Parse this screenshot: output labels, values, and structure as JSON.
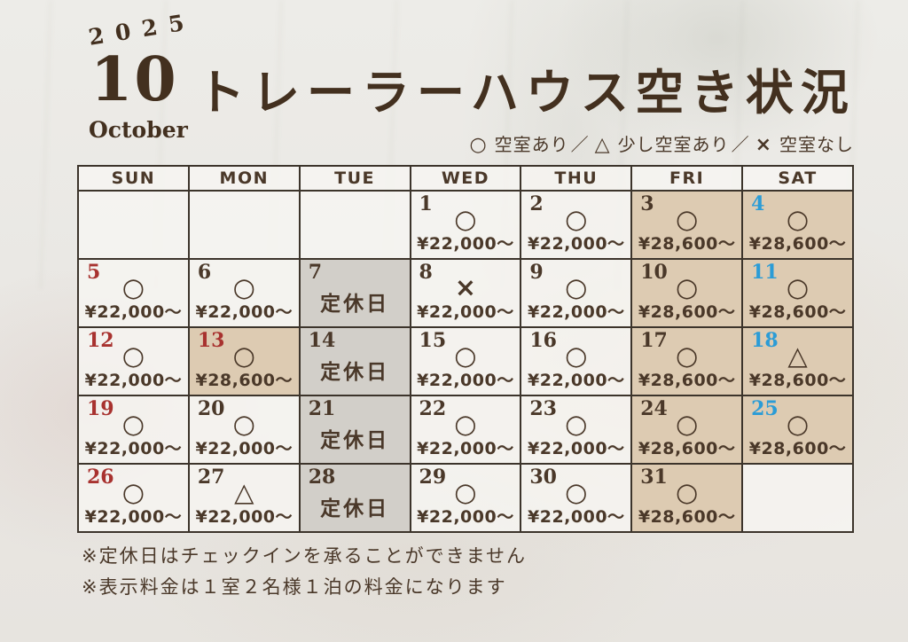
{
  "header": {
    "year": "2025",
    "month_number": "10",
    "month_name": "October",
    "title": "トレーラーハウス空き状況"
  },
  "legend": {
    "separator": "／",
    "items": [
      {
        "symbol": "○",
        "label": "空室あり"
      },
      {
        "symbol": "△",
        "label": "少し空室あり"
      },
      {
        "symbol": "×",
        "label": "空室なし"
      }
    ]
  },
  "calendar": {
    "closed_label": "定休日",
    "day_headers": [
      {
        "label": "SUN",
        "color": "red"
      },
      {
        "label": "MON",
        "color": "brown"
      },
      {
        "label": "TUE",
        "color": "brown"
      },
      {
        "label": "WED",
        "color": "brown"
      },
      {
        "label": "THU",
        "color": "brown"
      },
      {
        "label": "FRI",
        "color": "brown"
      },
      {
        "label": "SAT",
        "color": "blue"
      }
    ],
    "weeks": [
      [
        null,
        null,
        null,
        {
          "day": "1",
          "day_color": "brown",
          "symbol": "○",
          "price": "¥22,000～",
          "bg": "plain"
        },
        {
          "day": "2",
          "day_color": "brown",
          "symbol": "○",
          "price": "¥22,000～",
          "bg": "plain"
        },
        {
          "day": "3",
          "day_color": "brown",
          "symbol": "○",
          "price": "¥28,600～",
          "bg": "tan"
        },
        {
          "day": "4",
          "day_color": "blue",
          "symbol": "○",
          "price": "¥28,600～",
          "bg": "tan"
        }
      ],
      [
        {
          "day": "5",
          "day_color": "red",
          "symbol": "○",
          "price": "¥22,000～",
          "bg": "plain"
        },
        {
          "day": "6",
          "day_color": "brown",
          "symbol": "○",
          "price": "¥22,000～",
          "bg": "plain"
        },
        {
          "day": "7",
          "day_color": "brown",
          "closed": true,
          "bg": "gray"
        },
        {
          "day": "8",
          "day_color": "brown",
          "symbol": "×",
          "price": "¥22,000～",
          "bg": "plain"
        },
        {
          "day": "9",
          "day_color": "brown",
          "symbol": "○",
          "price": "¥22,000～",
          "bg": "plain"
        },
        {
          "day": "10",
          "day_color": "brown",
          "symbol": "○",
          "price": "¥28,600～",
          "bg": "tan"
        },
        {
          "day": "11",
          "day_color": "blue",
          "symbol": "○",
          "price": "¥28,600～",
          "bg": "tan"
        }
      ],
      [
        {
          "day": "12",
          "day_color": "red",
          "symbol": "○",
          "price": "¥22,000～",
          "bg": "plain"
        },
        {
          "day": "13",
          "day_color": "red",
          "symbol": "○",
          "price": "¥28,600～",
          "bg": "tan"
        },
        {
          "day": "14",
          "day_color": "brown",
          "closed": true,
          "bg": "gray"
        },
        {
          "day": "15",
          "day_color": "brown",
          "symbol": "○",
          "price": "¥22,000～",
          "bg": "plain"
        },
        {
          "day": "16",
          "day_color": "brown",
          "symbol": "○",
          "price": "¥22,000～",
          "bg": "plain"
        },
        {
          "day": "17",
          "day_color": "brown",
          "symbol": "○",
          "price": "¥28,600～",
          "bg": "tan"
        },
        {
          "day": "18",
          "day_color": "blue",
          "symbol": "△",
          "price": "¥28,600～",
          "bg": "tan"
        }
      ],
      [
        {
          "day": "19",
          "day_color": "red",
          "symbol": "○",
          "price": "¥22,000～",
          "bg": "plain"
        },
        {
          "day": "20",
          "day_color": "brown",
          "symbol": "○",
          "price": "¥22,000～",
          "bg": "plain"
        },
        {
          "day": "21",
          "day_color": "brown",
          "closed": true,
          "bg": "gray"
        },
        {
          "day": "22",
          "day_color": "brown",
          "symbol": "○",
          "price": "¥22,000～",
          "bg": "plain"
        },
        {
          "day": "23",
          "day_color": "brown",
          "symbol": "○",
          "price": "¥22,000～",
          "bg": "plain"
        },
        {
          "day": "24",
          "day_color": "brown",
          "symbol": "○",
          "price": "¥28,600～",
          "bg": "tan"
        },
        {
          "day": "25",
          "day_color": "blue",
          "symbol": "○",
          "price": "¥28,600～",
          "bg": "tan"
        }
      ],
      [
        {
          "day": "26",
          "day_color": "red",
          "symbol": "○",
          "price": "¥22,000～",
          "bg": "plain"
        },
        {
          "day": "27",
          "day_color": "brown",
          "symbol": "△",
          "price": "¥22,000～",
          "bg": "plain"
        },
        {
          "day": "28",
          "day_color": "brown",
          "closed": true,
          "bg": "gray"
        },
        {
          "day": "29",
          "day_color": "brown",
          "symbol": "○",
          "price": "¥22,000～",
          "bg": "plain"
        },
        {
          "day": "30",
          "day_color": "brown",
          "symbol": "○",
          "price": "¥22,000～",
          "bg": "plain"
        },
        {
          "day": "31",
          "day_color": "brown",
          "symbol": "○",
          "price": "¥28,600～",
          "bg": "tan"
        },
        null
      ]
    ]
  },
  "notes": [
    "※定休日はチェックインを承ることができません",
    "※表示料金は１室２名様１泊の料金になります"
  ],
  "colors": {
    "brown": "#4a3829",
    "red": "#a8322f",
    "blue": "#2b9cd6",
    "tan_bg": "#ddcbb2",
    "gray_bg": "#d2cfc9",
    "border": "#3c342b",
    "paper": "#eae8e4"
  }
}
